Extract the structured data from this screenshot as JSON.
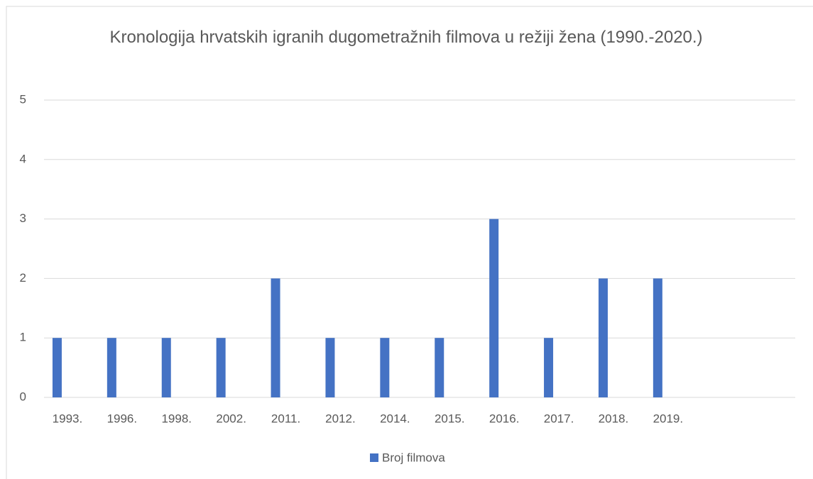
{
  "chart_data": {
    "type": "bar",
    "title": "Kronologija hrvatskih igranih dugometražnih filmova u režiji žena (1990.-2020.)",
    "categories": [
      "1993.",
      "1996.",
      "1998.",
      "2002.",
      "2011.",
      "2012.",
      "2014.",
      "2015.",
      "2016.",
      "2017.",
      "2018.",
      "2019.",
      null,
      null
    ],
    "series": [
      {
        "name": "Broj filmova",
        "color": "#4472c4",
        "values": [
          1,
          1,
          1,
          1,
          2,
          1,
          1,
          1,
          3,
          1,
          2,
          2,
          null,
          null
        ]
      }
    ],
    "ylim": [
      0,
      5
    ],
    "yticks": [
      0,
      1,
      2,
      3,
      4,
      5
    ],
    "grid": true,
    "legend": "bottom"
  }
}
